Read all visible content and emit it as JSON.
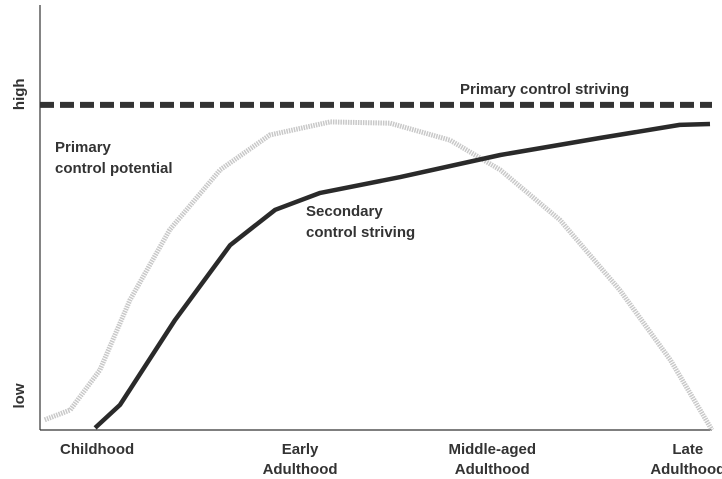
{
  "chart_data": {
    "type": "line",
    "xlim": [
      0,
      100
    ],
    "ylim": [
      0,
      100
    ],
    "xticks": [
      {
        "value": 8.5,
        "label": "Childhood"
      },
      {
        "value": 38.7,
        "label": "Early Adulthood"
      },
      {
        "value": 67.3,
        "label": "Middle-aged Adulthood"
      },
      {
        "value": 96.4,
        "label": "Late Adulthood"
      }
    ],
    "yticks": [
      {
        "value": 8,
        "label": "low"
      },
      {
        "value": 79,
        "label": "high"
      }
    ],
    "series": [
      {
        "name": "Primary control striving",
        "color": "#333333",
        "style": "dashed",
        "x": [
          0,
          100
        ],
        "values": [
          76.5,
          76.5
        ]
      },
      {
        "name": "Primary control potential",
        "color": "#c8c8c8",
        "style": "dotted",
        "x": [
          0.7,
          4.5,
          8.9,
          13.4,
          19.3,
          26.8,
          34.2,
          43.2,
          52.1,
          61.0,
          68.5,
          77.4,
          86.3,
          93.8,
          100
        ],
        "values": [
          2.4,
          4.7,
          14.1,
          30.6,
          47.1,
          61.2,
          69.4,
          72.5,
          72.2,
          68.2,
          61.2,
          49.4,
          32.9,
          16.5,
          0
        ]
      },
      {
        "name": "Secondary control striving",
        "color": "#2a2a2a",
        "style": "solid",
        "x": [
          8.2,
          11.9,
          20.1,
          28.3,
          35.0,
          41.7,
          53.6,
          68.5,
          83.3,
          95.2,
          99.7
        ],
        "values": [
          0.5,
          5.9,
          25.9,
          43.5,
          51.8,
          55.8,
          59.5,
          64.7,
          68.7,
          71.8,
          72.0
        ]
      }
    ]
  }
}
